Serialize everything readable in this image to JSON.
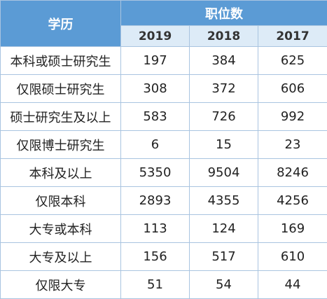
{
  "table": {
    "header": [
      "学历",
      "职位数"
    ],
    "years": [
      2019,
      2018,
      2017
    ],
    "rows": [
      [
        "本科或硕士研究生",
        197,
        384,
        625
      ],
      [
        "仅限硕士研究生",
        308,
        372,
        606
      ],
      [
        "硕士研究生及以上",
        583,
        726,
        992
      ],
      [
        "仅限博士研究生",
        6,
        15,
        23
      ],
      [
        "本科及以上",
        5350,
        9504,
        8246
      ],
      [
        "仅限本科",
        2893,
        4355,
        4256
      ],
      [
        "大专或本科",
        113,
        124,
        169
      ],
      [
        "大专及以上",
        156,
        517,
        610
      ],
      [
        "仅限大专",
        51,
        54,
        44
      ]
    ]
  }
}
